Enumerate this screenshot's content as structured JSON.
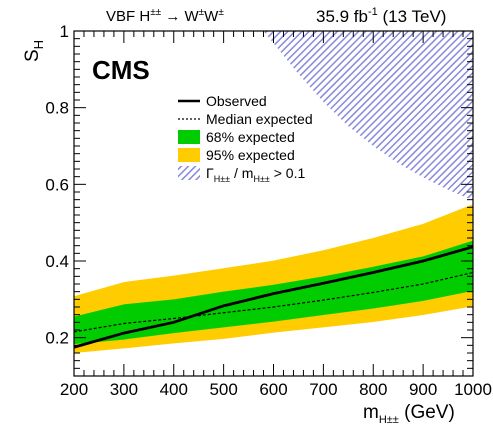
{
  "chart_data": {
    "type": "line",
    "header_left": "VBF H±± → W±W±",
    "header_right": "35.9 fb-1 (13 TeV)",
    "experiment_label": "CMS",
    "xlabel": "m_H±± (GeV)",
    "ylabel": "S_H",
    "xlim": [
      200,
      1000
    ],
    "ylim": [
      0.1,
      1.0
    ],
    "x_ticks": [
      200,
      300,
      400,
      500,
      600,
      700,
      800,
      900,
      1000
    ],
    "y_ticks": [
      0.2,
      0.4,
      0.6,
      0.8,
      1.0
    ],
    "y_tick_labels": [
      "0.2",
      "0.4",
      "0.6",
      "0.8",
      "1"
    ],
    "legend_position": "top-right",
    "x": [
      200,
      300,
      400,
      500,
      600,
      700,
      800,
      900,
      1000
    ],
    "series": [
      {
        "name": "Observed",
        "style": "solid",
        "color": "#000000",
        "values": [
          0.175,
          0.212,
          0.24,
          0.283,
          0.315,
          0.342,
          0.37,
          0.4,
          0.437
        ]
      },
      {
        "name": "Median expected",
        "style": "dotted",
        "color": "#000000",
        "values": [
          0.215,
          0.237,
          0.25,
          0.265,
          0.28,
          0.298,
          0.318,
          0.34,
          0.37
        ]
      }
    ],
    "bands": [
      {
        "name": "68% expected",
        "color": "#00cc00",
        "lower": [
          0.183,
          0.195,
          0.212,
          0.227,
          0.242,
          0.259,
          0.276,
          0.296,
          0.322
        ],
        "upper": [
          0.255,
          0.287,
          0.3,
          0.32,
          0.338,
          0.36,
          0.385,
          0.412,
          0.453
        ]
      },
      {
        "name": "95% expected",
        "color": "#ffcc00",
        "lower": [
          0.16,
          0.172,
          0.185,
          0.197,
          0.213,
          0.227,
          0.241,
          0.259,
          0.282
        ],
        "upper": [
          0.308,
          0.345,
          0.362,
          0.381,
          0.401,
          0.428,
          0.46,
          0.497,
          0.548
        ]
      }
    ],
    "exclusion_region": {
      "name": "Γ_H±± / m_H±± > 0.1",
      "color": "#8888dd",
      "boundary_x": [
        580,
        650,
        700,
        750,
        800,
        850,
        900,
        950,
        1000
      ],
      "boundary_y": [
        1.0,
        0.888,
        0.815,
        0.752,
        0.7,
        0.655,
        0.618,
        0.586,
        0.558
      ]
    }
  }
}
